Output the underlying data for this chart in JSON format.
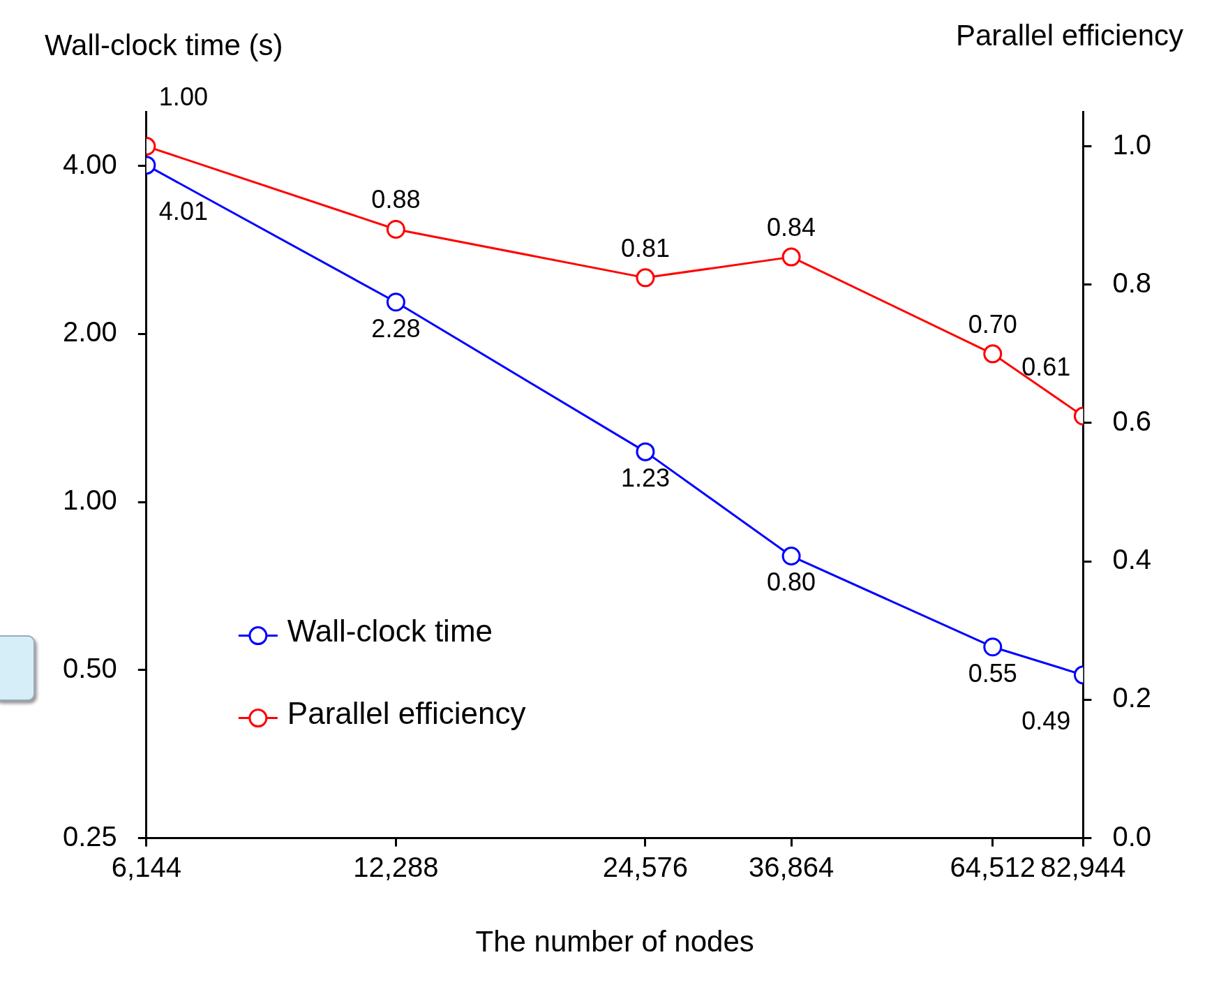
{
  "chart_data": {
    "type": "line",
    "xlabel": "The number of nodes",
    "ylabel": "Wall-clock time (s)",
    "y2label": "Parallel efficiency",
    "x": [
      6144,
      12288,
      24576,
      36864,
      64512,
      82944
    ],
    "series": [
      {
        "name": "Wall-clock time",
        "color": "#0000ff",
        "values": [
          4.01,
          2.28,
          1.23,
          0.8,
          0.55,
          0.49
        ],
        "value_labels": [
          "4.01",
          "2.28",
          "1.23",
          "0.80",
          "0.55",
          "0.49"
        ]
      },
      {
        "name": "Parallel efficiency",
        "color": "#ff0000",
        "axis": "y2",
        "values": [
          1.0,
          0.88,
          0.81,
          0.84,
          0.7,
          0.61
        ],
        "value_labels": [
          "1.00",
          "0.88",
          "0.81",
          "0.84",
          "0.70",
          "0.61"
        ]
      }
    ],
    "log": "xy",
    "xlim": [
      6144,
      82944
    ],
    "xticks": [
      {
        "value": 6144,
        "label": "6,144"
      },
      {
        "value": 12288,
        "label": "12,288"
      },
      {
        "value": 24576,
        "label": "24,576"
      },
      {
        "value": 36864,
        "label": "36,864"
      },
      {
        "value": 64512,
        "label": "64,512"
      },
      {
        "value": 82944,
        "label": "82,944"
      }
    ],
    "ylim": [
      0.25,
      5.0
    ],
    "yticks": [
      {
        "value": 0.25,
        "label": "0.25"
      },
      {
        "value": 0.5,
        "label": "0.50"
      },
      {
        "value": 1,
        "label": "1.00"
      },
      {
        "value": 2,
        "label": "2.00"
      },
      {
        "value": 4,
        "label": "4.00"
      }
    ],
    "y2lim": [
      0,
      1.05
    ],
    "y2ticks": [
      {
        "value": 0,
        "label": "0.0"
      },
      {
        "value": 0.2,
        "label": "0.2"
      },
      {
        "value": 0.4,
        "label": "0.4"
      },
      {
        "value": 0.6,
        "label": "0.6"
      },
      {
        "value": 0.8,
        "label": "0.8"
      },
      {
        "value": 1,
        "label": "1.0"
      }
    ],
    "grid": false,
    "legend": "bottom left",
    "marker": "circle",
    "line_style": "solid"
  }
}
